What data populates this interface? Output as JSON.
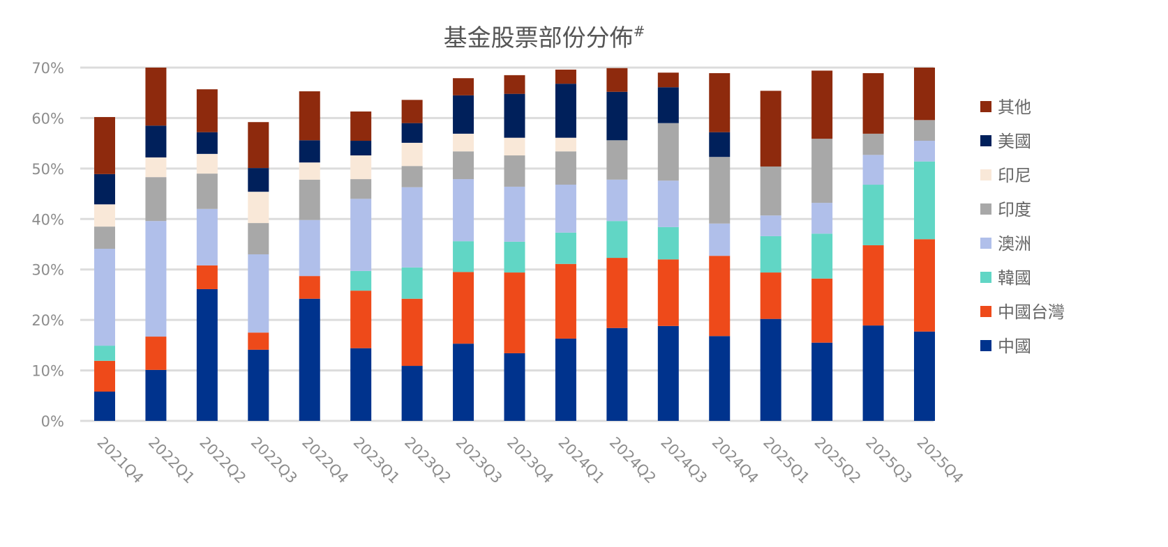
{
  "chart_data": {
    "type": "bar",
    "stacked": true,
    "title": "基金股票部份分佈",
    "title_mark": "#",
    "xlabel": "",
    "ylabel": "",
    "ylim": [
      0,
      70
    ],
    "yticks": [
      "0%",
      "10%",
      "20%",
      "30%",
      "40%",
      "50%",
      "60%",
      "70%"
    ],
    "grid": true,
    "legend_position": "right",
    "categories": [
      "2021Q4",
      "2022Q1",
      "2022Q2",
      "2022Q3",
      "2022Q4",
      "2023Q1",
      "2023Q2",
      "2023Q3",
      "2023Q4",
      "2024Q1",
      "2024Q2",
      "2024Q3",
      "2024Q4",
      "2025Q1",
      "2025Q2",
      "2025Q3",
      "2025Q4"
    ],
    "series": [
      {
        "name": "中國",
        "color": "#00338d",
        "values": [
          5.8,
          10.1,
          26.1,
          14.1,
          24.2,
          14.4,
          10.9,
          15.3,
          13.4,
          16.3,
          18.4,
          18.8,
          16.8,
          20.2,
          15.5,
          18.9,
          17.7
        ]
      },
      {
        "name": "中國台灣",
        "color": "#ee4a1a",
        "values": [
          6.1,
          6.6,
          4.7,
          3.4,
          4.5,
          11.4,
          13.3,
          14.2,
          16.0,
          14.8,
          13.9,
          13.2,
          15.9,
          9.2,
          12.7,
          15.9,
          18.3
        ]
      },
      {
        "name": "韓國",
        "color": "#61d6c5",
        "values": [
          3.0,
          0,
          0,
          0,
          0,
          3.9,
          6.2,
          6.1,
          6.1,
          6.2,
          7.3,
          6.4,
          0,
          7.2,
          8.9,
          12.0,
          15.4
        ]
      },
      {
        "name": "澳洲",
        "color": "#b0bfea",
        "values": [
          19.2,
          22.9,
          11.2,
          15.5,
          11.1,
          14.3,
          15.9,
          12.3,
          10.9,
          9.5,
          8.2,
          9.2,
          6.4,
          4.1,
          6.1,
          5.9,
          4.1
        ]
      },
      {
        "name": "印度",
        "color": "#a8a8a8",
        "values": [
          4.4,
          8.7,
          7.0,
          6.2,
          8.0,
          3.9,
          4.2,
          5.5,
          6.2,
          6.6,
          7.8,
          11.4,
          13.2,
          9.7,
          12.7,
          4.2,
          4.1
        ]
      },
      {
        "name": "印尼",
        "color": "#f9e8d8",
        "values": [
          4.4,
          3.9,
          3.9,
          6.2,
          3.4,
          4.7,
          4.6,
          3.5,
          3.5,
          2.7,
          0,
          0,
          0,
          0,
          0,
          0,
          0
        ]
      },
      {
        "name": "美國",
        "color": "#00205b",
        "values": [
          6.0,
          6.3,
          4.3,
          4.7,
          4.4,
          2.9,
          3.9,
          7.6,
          8.7,
          10.7,
          9.6,
          7.1,
          4.9,
          0,
          0,
          0,
          0
        ]
      },
      {
        "name": "其他",
        "color": "#8e2a0d",
        "values": [
          11.3,
          11.5,
          8.5,
          9.1,
          9.7,
          5.8,
          4.6,
          3.4,
          3.7,
          2.8,
          4.7,
          2.9,
          11.7,
          15.0,
          13.5,
          12.0,
          10.4
        ]
      }
    ]
  }
}
